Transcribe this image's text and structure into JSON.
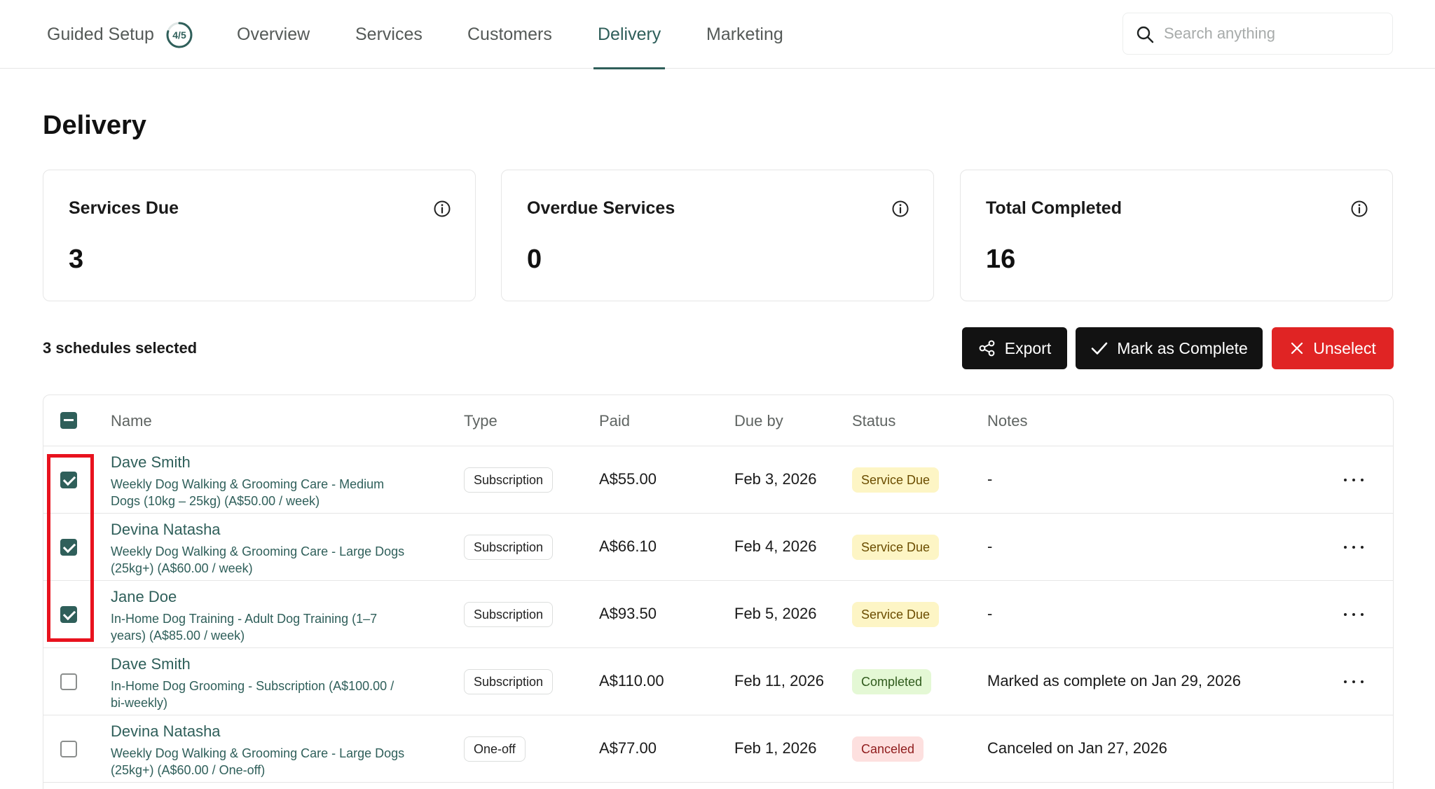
{
  "nav": {
    "guided_setup": "Guided Setup",
    "guided_progress": "4/5",
    "guided_fraction": 0.8,
    "items": [
      {
        "label": "Overview"
      },
      {
        "label": "Services"
      },
      {
        "label": "Customers"
      },
      {
        "label": "Delivery"
      },
      {
        "label": "Marketing"
      }
    ],
    "active": "Delivery",
    "search_placeholder": "Search anything",
    "search_value": ""
  },
  "page": {
    "title": "Delivery"
  },
  "stats": [
    {
      "label": "Services Due",
      "value": "3"
    },
    {
      "label": "Overdue Services",
      "value": "0"
    },
    {
      "label": "Total Completed",
      "value": "16"
    }
  ],
  "selection": {
    "text": "3 schedules selected",
    "export_label": "Export",
    "complete_label": "Mark as Complete",
    "unselect_label": "Unselect"
  },
  "table": {
    "headers": {
      "name": "Name",
      "type": "Type",
      "paid": "Paid",
      "due": "Due by",
      "status": "Status",
      "notes": "Notes"
    },
    "rows": [
      {
        "checked": true,
        "name": "Dave Smith",
        "desc1": "Weekly Dog Walking & Grooming Care - Medium",
        "desc2": "Dogs (10kg – 25kg) (A$50.00 / week)",
        "type": "Subscription",
        "paid": "A$55.00",
        "due": "Feb 3, 2026",
        "status": "Service Due",
        "status_kind": "due",
        "notes": "-",
        "has_menu": true
      },
      {
        "checked": true,
        "name": "Devina Natasha",
        "desc1": "Weekly Dog Walking & Grooming Care - Large Dogs",
        "desc2": "(25kg+) (A$60.00 / week)",
        "type": "Subscription",
        "paid": "A$66.10",
        "due": "Feb 4, 2026",
        "status": "Service Due",
        "status_kind": "due",
        "notes": "-",
        "has_menu": true
      },
      {
        "checked": true,
        "name": "Jane Doe",
        "desc1": "In-Home Dog Training - Adult Dog Training (1–7",
        "desc2": "years) (A$85.00 / week)",
        "type": "Subscription",
        "paid": "A$93.50",
        "due": "Feb 5, 2026",
        "status": "Service Due",
        "status_kind": "due",
        "notes": "-",
        "has_menu": true
      },
      {
        "checked": false,
        "name": "Dave Smith",
        "desc1": "In-Home Dog Grooming - Subscription (A$100.00 /",
        "desc2": "bi-weekly)",
        "type": "Subscription",
        "paid": "A$110.00",
        "due": "Feb 11, 2026",
        "status": "Completed",
        "status_kind": "completed",
        "notes": "Marked as complete on Jan 29, 2026",
        "has_menu": true
      },
      {
        "checked": false,
        "name": "Devina Natasha",
        "desc1": "Weekly Dog Walking & Grooming Care - Large Dogs",
        "desc2": "(25kg+) (A$60.00 / One-off)",
        "type": "One-off",
        "paid": "A$77.00",
        "due": "Feb 1, 2026",
        "status": "Canceled",
        "status_kind": "canceled",
        "notes": "Canceled on Jan 27, 2026",
        "has_menu": false
      }
    ]
  },
  "colors": {
    "accent": "#2f5f5a",
    "danger": "#e02424",
    "dark_button": "#121212",
    "highlight": "#e8121e"
  }
}
